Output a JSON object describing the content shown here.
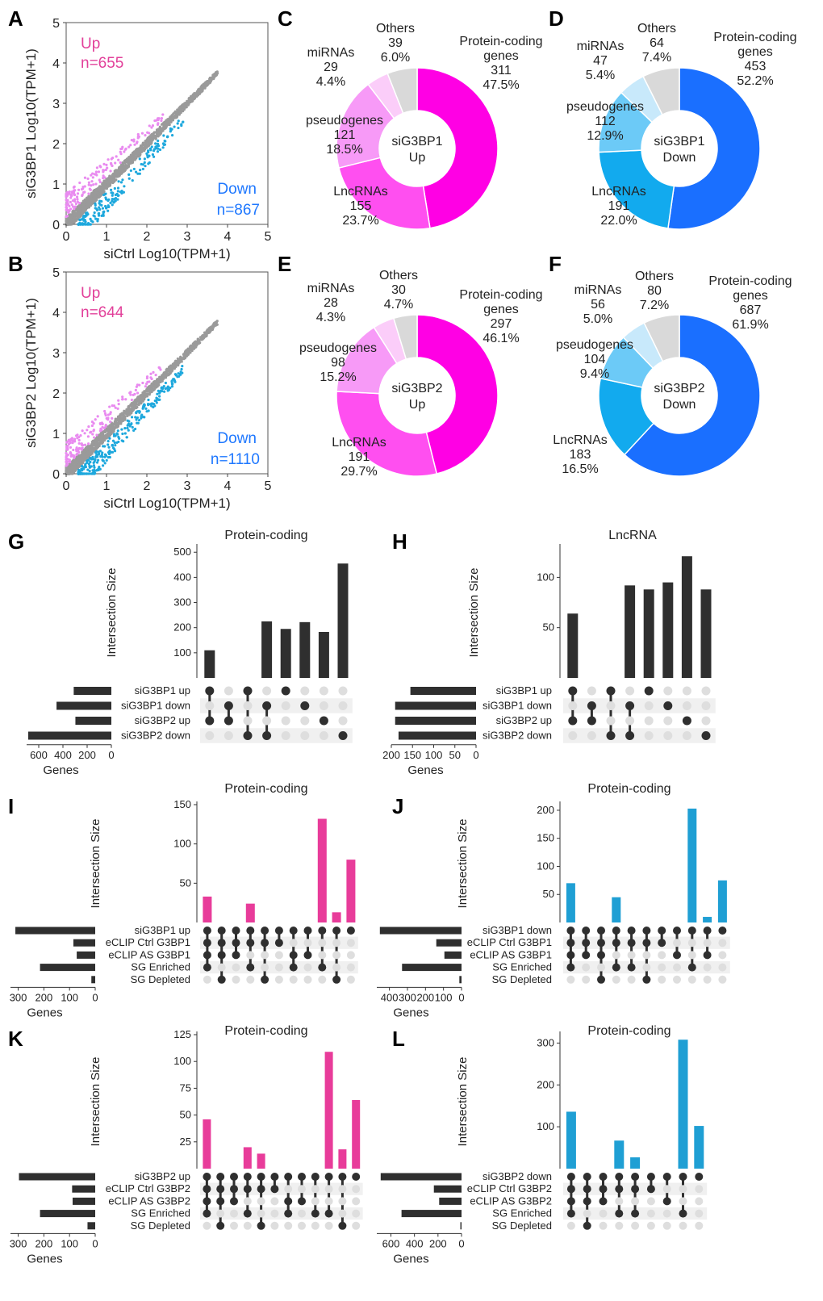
{
  "figure_title": "",
  "colors": {
    "up_pink": "#e2409a",
    "up_pink_light": "#e98bf0",
    "down_blue": "#1ea8dd",
    "down_text_blue": "#1f78ff",
    "grey_points": "#9a9a9a",
    "bar_dark": "#2f2f2f",
    "bar_pink": "#e83c9a",
    "bar_blue": "#1f9fd4",
    "dot_dark": "#2f2f2f",
    "dot_light": "#dedede",
    "stripe": "#f0f0f0"
  },
  "chart_data": [
    {
      "id": "A",
      "type": "scatter",
      "title": "",
      "xlabel": "siCtrl Log10(TPM+1)",
      "ylabel": "siG3BP1 Log10(TPM+1)",
      "xlim": [
        0,
        5
      ],
      "ylim": [
        0,
        5
      ],
      "xticks": [
        "0",
        "1",
        "2",
        "3",
        "4",
        "5"
      ],
      "yticks": [
        "0",
        "1",
        "2",
        "3",
        "4",
        "5"
      ],
      "annotations": [
        {
          "text": "Up",
          "color": "#e2409a"
        },
        {
          "text": "n=655",
          "color": "#e2409a"
        },
        {
          "text": "Down",
          "color": "#1f78ff"
        },
        {
          "text": "n=867",
          "color": "#1f78ff"
        }
      ],
      "series": [
        {
          "name": "unchanged",
          "color": "#9a9a9a"
        },
        {
          "name": "Up",
          "n": 655,
          "color": "#e98bf0"
        },
        {
          "name": "Down",
          "n": 867,
          "color": "#1ea8dd"
        }
      ]
    },
    {
      "id": "B",
      "type": "scatter",
      "title": "",
      "xlabel": "siCtrl Log10(TPM+1)",
      "ylabel": "siG3BP2 Log10(TPM+1)",
      "xlim": [
        0,
        5
      ],
      "ylim": [
        0,
        5
      ],
      "xticks": [
        "0",
        "1",
        "2",
        "3",
        "4",
        "5"
      ],
      "yticks": [
        "0",
        "1",
        "2",
        "3",
        "4",
        "5"
      ],
      "annotations": [
        {
          "text": "Up",
          "color": "#e2409a"
        },
        {
          "text": "n=644",
          "color": "#e2409a"
        },
        {
          "text": "Down",
          "color": "#1f78ff"
        },
        {
          "text": "n=1110",
          "color": "#1f78ff"
        }
      ],
      "series": [
        {
          "name": "unchanged",
          "color": "#9a9a9a"
        },
        {
          "name": "Up",
          "n": 644,
          "color": "#e98bf0"
        },
        {
          "name": "Down",
          "n": 1110,
          "color": "#1ea8dd"
        }
      ]
    },
    {
      "id": "C",
      "type": "pie",
      "center_label": [
        "siG3BP1",
        "Up"
      ],
      "slices": [
        {
          "label": "Protein-coding genes",
          "label_lines": [
            "Protein-coding",
            "genes"
          ],
          "count": "311",
          "percent": "47.5%",
          "value": 47.5,
          "color": "#ff00e4"
        },
        {
          "label": "LncRNAs",
          "label_lines": [
            "LncRNAs"
          ],
          "count": "155",
          "percent": "23.7%",
          "value": 23.7,
          "color": "#ff4ff0"
        },
        {
          "label": "pseudogenes",
          "label_lines": [
            "pseudogenes"
          ],
          "count": "121",
          "percent": "18.5%",
          "value": 18.5,
          "color": "#f79af7"
        },
        {
          "label": "miRNAs",
          "label_lines": [
            "miRNAs"
          ],
          "count": "29",
          "percent": "4.4%",
          "value": 4.4,
          "color": "#fbcdf9"
        },
        {
          "label": "Others",
          "label_lines": [
            "Others"
          ],
          "count": "39",
          "percent": "6.0%",
          "value": 6.0,
          "color": "#d9d9d9"
        }
      ]
    },
    {
      "id": "D",
      "type": "pie",
      "center_label": [
        "siG3BP1",
        "Down"
      ],
      "slices": [
        {
          "label": "Protein-coding genes",
          "label_lines": [
            "Protein-coding",
            "genes"
          ],
          "count": "453",
          "percent": "52.2%",
          "value": 52.2,
          "color": "#1a6fff"
        },
        {
          "label": "LncRNAs",
          "label_lines": [
            "LncRNAs"
          ],
          "count": "191",
          "percent": "22.0%",
          "value": 22.0,
          "color": "#12aaee"
        },
        {
          "label": "pseudogenes",
          "label_lines": [
            "pseudogenes"
          ],
          "count": "112",
          "percent": "12.9%",
          "value": 12.9,
          "color": "#6ccaf7"
        },
        {
          "label": "miRNAs",
          "label_lines": [
            "miRNAs"
          ],
          "count": "47",
          "percent": "5.4%",
          "value": 5.4,
          "color": "#c8e9fb"
        },
        {
          "label": "Others",
          "label_lines": [
            "Others"
          ],
          "count": "64",
          "percent": "7.4%",
          "value": 7.4,
          "color": "#d9d9d9"
        }
      ]
    },
    {
      "id": "E",
      "type": "pie",
      "center_label": [
        "siG3BP2",
        "Up"
      ],
      "slices": [
        {
          "label": "Protein-coding genes",
          "label_lines": [
            "Protein-coding",
            "genes"
          ],
          "count": "297",
          "percent": "46.1%",
          "value": 46.1,
          "color": "#ff00e4"
        },
        {
          "label": "LncRNAs",
          "label_lines": [
            "LncRNAs"
          ],
          "count": "191",
          "percent": "29.7%",
          "value": 29.7,
          "color": "#ff4ff0"
        },
        {
          "label": "pseudogenes",
          "label_lines": [
            "pseudogenes"
          ],
          "count": "98",
          "percent": "15.2%",
          "value": 15.2,
          "color": "#f79af7"
        },
        {
          "label": "miRNAs",
          "label_lines": [
            "miRNAs"
          ],
          "count": "28",
          "percent": "4.3%",
          "value": 4.3,
          "color": "#fbcdf9"
        },
        {
          "label": "Others",
          "label_lines": [
            "Others"
          ],
          "count": "30",
          "percent": "4.7%",
          "value": 4.7,
          "color": "#d9d9d9"
        }
      ]
    },
    {
      "id": "F",
      "type": "pie",
      "center_label": [
        "siG3BP2",
        "Down"
      ],
      "slices": [
        {
          "label": "Protein-coding genes",
          "label_lines": [
            "Protein-coding",
            "genes"
          ],
          "count": "687",
          "percent": "61.9%",
          "value": 61.9,
          "color": "#1a6fff"
        },
        {
          "label": "LncRNAs",
          "label_lines": [
            "LncRNAs"
          ],
          "count": "183",
          "percent": "16.5%",
          "value": 16.5,
          "color": "#12aaee"
        },
        {
          "label": "pseudogenes",
          "label_lines": [
            "pseudogenes"
          ],
          "count": "104",
          "percent": "9.4%",
          "value": 9.4,
          "color": "#6ccaf7"
        },
        {
          "label": "miRNAs",
          "label_lines": [
            "miRNAs"
          ],
          "count": "56",
          "percent": "5.0%",
          "value": 5.0,
          "color": "#c8e9fb"
        },
        {
          "label": "Others",
          "label_lines": [
            "Others"
          ],
          "count": "80",
          "percent": "7.2%",
          "value": 7.2,
          "color": "#d9d9d9"
        }
      ]
    },
    {
      "id": "G",
      "type": "bar",
      "subtype": "upset",
      "title": "Protein-coding",
      "ylabel": "Intersection Size",
      "setsize_label": "Genes",
      "yticks": [
        100,
        200,
        300,
        400,
        500
      ],
      "ylim": [
        0,
        520
      ],
      "set_names": [
        "siG3BP1 up",
        "siG3BP1 down",
        "siG3BP2 up",
        "siG3BP2 down"
      ],
      "set_sizes": [
        311,
        453,
        297,
        687
      ],
      "setsize_ticks": [
        600,
        400,
        200,
        0
      ],
      "setsize_max": 700,
      "bar_color": "#2f2f2f",
      "intersections": [
        {
          "sets": [
            0,
            2
          ],
          "value": 110
        },
        {
          "sets": [
            1,
            2
          ],
          "value": 0
        },
        {
          "sets": [
            0,
            3
          ],
          "value": 0
        },
        {
          "sets": [
            1,
            3
          ],
          "value": 225
        },
        {
          "sets": [
            0
          ],
          "value": 195
        },
        {
          "sets": [
            1
          ],
          "value": 222
        },
        {
          "sets": [
            2
          ],
          "value": 183
        },
        {
          "sets": [
            3
          ],
          "value": 455
        }
      ]
    },
    {
      "id": "H",
      "type": "bar",
      "subtype": "upset",
      "title": "LncRNA",
      "ylabel": "Intersection Size",
      "setsize_label": "Genes",
      "yticks": [
        50,
        100
      ],
      "ylim": [
        0,
        130
      ],
      "set_names": [
        "siG3BP1 up",
        "siG3BP1 down",
        "siG3BP2 up",
        "siG3BP2 down"
      ],
      "set_sizes": [
        155,
        191,
        191,
        183
      ],
      "setsize_ticks": [
        200,
        150,
        100,
        50,
        0
      ],
      "setsize_max": 200,
      "bar_color": "#2f2f2f",
      "intersections": [
        {
          "sets": [
            0,
            2
          ],
          "value": 64
        },
        {
          "sets": [
            1,
            2
          ],
          "value": 0
        },
        {
          "sets": [
            0,
            3
          ],
          "value": 0
        },
        {
          "sets": [
            1,
            3
          ],
          "value": 92
        },
        {
          "sets": [
            0
          ],
          "value": 88
        },
        {
          "sets": [
            1
          ],
          "value": 95
        },
        {
          "sets": [
            2
          ],
          "value": 121
        },
        {
          "sets": [
            3
          ],
          "value": 88
        }
      ]
    },
    {
      "id": "I",
      "type": "bar",
      "subtype": "upset",
      "title": "Protein-coding",
      "ylabel": "Intersection Size",
      "setsize_label": "Genes",
      "yticks": [
        50,
        100,
        150
      ],
      "ylim": [
        0,
        150
      ],
      "set_names": [
        "siG3BP1 up",
        "eCLIP Ctrl G3BP1",
        "eCLIP AS G3BP1",
        "SG Enriched",
        "SG Depleted"
      ],
      "set_sizes": [
        311,
        85,
        72,
        215,
        15
      ],
      "setsize_ticks": [
        300,
        200,
        100,
        0
      ],
      "setsize_max": 330,
      "bar_color": "#e83c9a",
      "intersections": [
        {
          "sets": [
            0,
            1,
            2,
            3
          ],
          "value": 33
        },
        {
          "sets": [
            0,
            1,
            2,
            4
          ],
          "value": 0
        },
        {
          "sets": [
            0,
            1,
            2
          ],
          "value": 0
        },
        {
          "sets": [
            0,
            1,
            3
          ],
          "value": 24
        },
        {
          "sets": [
            0,
            1,
            4
          ],
          "value": 0
        },
        {
          "sets": [
            0,
            1
          ],
          "value": 0
        },
        {
          "sets": [
            0,
            2,
            3
          ],
          "value": 0
        },
        {
          "sets": [
            0,
            2
          ],
          "value": 0
        },
        {
          "sets": [
            0,
            3
          ],
          "value": 132
        },
        {
          "sets": [
            0,
            4
          ],
          "value": 13
        },
        {
          "sets": [
            0
          ],
          "value": 80
        }
      ]
    },
    {
      "id": "J",
      "type": "bar",
      "subtype": "upset",
      "title": "Protein-coding",
      "ylabel": "Intersection Size",
      "setsize_label": "Genes",
      "yticks": [
        50,
        100,
        150,
        200
      ],
      "ylim": [
        0,
        210
      ],
      "set_names": [
        "siG3BP1 down",
        "eCLIP Ctrl G3BP1",
        "eCLIP AS G3BP1",
        "SG Enriched",
        "SG Depleted"
      ],
      "set_sizes": [
        453,
        140,
        95,
        330,
        12
      ],
      "setsize_ticks": [
        400,
        300,
        200,
        100,
        0
      ],
      "setsize_max": 470,
      "bar_color": "#1f9fd4",
      "intersections": [
        {
          "sets": [
            0,
            1,
            2,
            3
          ],
          "value": 70
        },
        {
          "sets": [
            0,
            1,
            2
          ],
          "value": 0
        },
        {
          "sets": [
            0,
            1,
            2,
            4
          ],
          "value": 0
        },
        {
          "sets": [
            0,
            1,
            3
          ],
          "value": 45
        },
        {
          "sets": [
            0,
            1,
            3
          ],
          "value": 0
        },
        {
          "sets": [
            0,
            1,
            4
          ],
          "value": 0
        },
        {
          "sets": [
            0,
            1
          ],
          "value": 0
        },
        {
          "sets": [
            0,
            2
          ],
          "value": 0
        },
        {
          "sets": [
            0,
            3
          ],
          "value": 203
        },
        {
          "sets": [
            0,
            2
          ],
          "value": 10
        },
        {
          "sets": [
            0
          ],
          "value": 75
        }
      ]
    },
    {
      "id": "K",
      "type": "bar",
      "subtype": "upset",
      "title": "Protein-coding",
      "ylabel": "Intersection Size",
      "setsize_label": "Genes",
      "yticks": [
        25,
        50,
        75,
        100,
        125
      ],
      "ylim": [
        0,
        125
      ],
      "set_names": [
        "siG3BP2 up",
        "eCLIP Ctrl G3BP2",
        "eCLIP AS G3BP2",
        "SG Enriched",
        "SG Depleted"
      ],
      "set_sizes": [
        297,
        90,
        88,
        215,
        30
      ],
      "setsize_ticks": [
        300,
        200,
        100,
        0
      ],
      "setsize_max": 330,
      "bar_color": "#e83c9a",
      "intersections": [
        {
          "sets": [
            0,
            1,
            2,
            3
          ],
          "value": 46
        },
        {
          "sets": [
            0,
            1,
            2,
            4
          ],
          "value": 0
        },
        {
          "sets": [
            0,
            1,
            2
          ],
          "value": 0
        },
        {
          "sets": [
            0,
            1,
            3
          ],
          "value": 20
        },
        {
          "sets": [
            0,
            1,
            4
          ],
          "value": 14
        },
        {
          "sets": [
            0,
            1
          ],
          "value": 0
        },
        {
          "sets": [
            0,
            2,
            3
          ],
          "value": 0
        },
        {
          "sets": [
            0,
            2
          ],
          "value": 0
        },
        {
          "sets": [
            0,
            3
          ],
          "value": 0
        },
        {
          "sets": [
            0,
            3
          ],
          "value": 109
        },
        {
          "sets": [
            0,
            4
          ],
          "value": 18
        },
        {
          "sets": [
            0
          ],
          "value": 64
        }
      ]
    },
    {
      "id": "L",
      "type": "bar",
      "subtype": "upset",
      "title": "Protein-coding",
      "ylabel": "Intersection Size",
      "setsize_label": "Genes",
      "yticks": [
        100,
        200,
        300
      ],
      "ylim": [
        0,
        320
      ],
      "set_names": [
        "siG3BP2 down",
        "eCLIP Ctrl G3BP2",
        "eCLIP AS G3BP2",
        "SG Enriched",
        "SG Depleted"
      ],
      "set_sizes": [
        687,
        235,
        190,
        510,
        10
      ],
      "setsize_ticks": [
        600,
        400,
        200,
        0
      ],
      "setsize_max": 720,
      "bar_color": "#1f9fd4",
      "intersections": [
        {
          "sets": [
            0,
            1,
            2,
            3
          ],
          "value": 136
        },
        {
          "sets": [
            0,
            1,
            2,
            4
          ],
          "value": 0
        },
        {
          "sets": [
            0,
            1,
            2
          ],
          "value": 0
        },
        {
          "sets": [
            0,
            1,
            3
          ],
          "value": 67
        },
        {
          "sets": [
            0,
            1,
            3
          ],
          "value": 27
        },
        {
          "sets": [
            0,
            1
          ],
          "value": 0
        },
        {
          "sets": [
            0,
            2
          ],
          "value": 0
        },
        {
          "sets": [
            0,
            3
          ],
          "value": 308
        },
        {
          "sets": [
            0
          ],
          "value": 102
        }
      ]
    }
  ]
}
